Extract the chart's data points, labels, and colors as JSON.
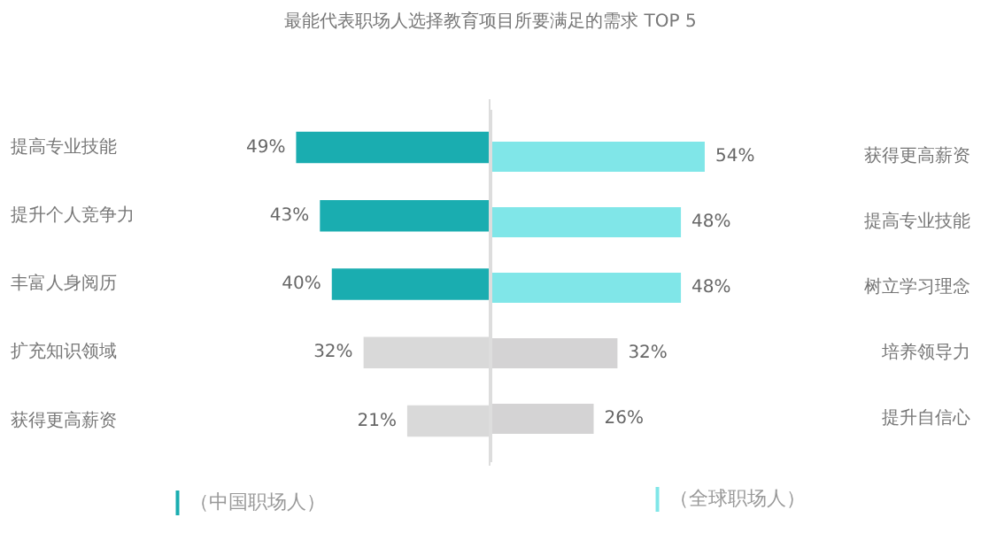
{
  "chart_data": [
    {
      "type": "bar",
      "orientation": "horizontal",
      "title": "最能代表职场人选择教育项目所要满足的需求 TOP 5",
      "categories": [
        "提高专业技能",
        "提升个人竞争力",
        "丰富人身阅历",
        "扩充知识领域",
        "获得更高薪资"
      ],
      "series": [
        {
          "name": "（中国职场人）",
          "colors": [
            "#1aadb0",
            "#1aadb0",
            "#1aadb0",
            "#d9d9d9",
            "#d9d9d9"
          ],
          "values": [
            49,
            43,
            40,
            32,
            21
          ],
          "value_labels": [
            "49%",
            "43%",
            "40%",
            "32%",
            "21%"
          ]
        }
      ],
      "tick_labels": "y",
      "grid": false,
      "legend": "bottom"
    },
    {
      "type": "bar",
      "orientation": "horizontal",
      "categories": [
        "获得更高薪资",
        "提高专业技能",
        "树立学习理念",
        "培养领导力",
        "提升自信心"
      ],
      "series": [
        {
          "name": "（全球职场人）",
          "colors": [
            "#80e6e8",
            "#80e6e8",
            "#80e6e8",
            "#d4d3d4",
            "#d4d3d4"
          ],
          "values": [
            54,
            48,
            48,
            32,
            26
          ],
          "value_labels": [
            "54%",
            "48%",
            "48%",
            "32%",
            "26%"
          ]
        }
      ],
      "tick_labels": "y",
      "grid": false,
      "legend": "bottom"
    }
  ]
}
